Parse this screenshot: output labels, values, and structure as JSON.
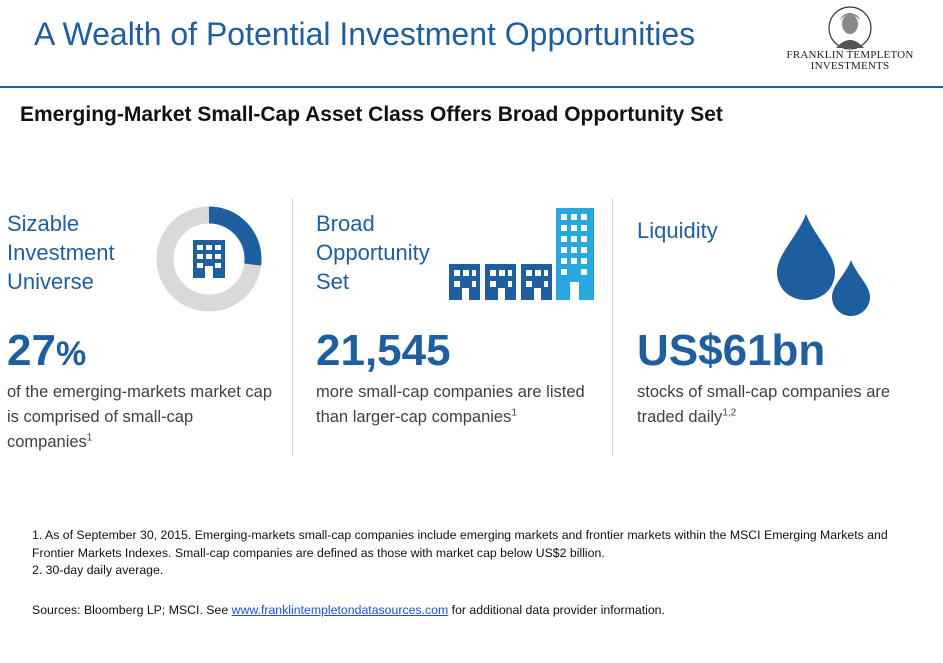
{
  "header": {
    "title": "A Wealth of Potential Investment Opportunities",
    "logo_line1": "FRANKLIN TEMPLETON",
    "logo_line2": "INVESTMENTS"
  },
  "subtitle": "Emerging-Market Small-Cap Asset Class Offers Broad Opportunity Set",
  "columns": [
    {
      "heading_lines": [
        "Sizable",
        "Investment",
        "Universe"
      ],
      "stat": "27",
      "stat_suffix": "%",
      "description": "of the emerging-markets market cap is comprised of small-cap companies",
      "footnote_ref": "1",
      "icon": "donut-building-icon",
      "donut_fraction": 0.27
    },
    {
      "heading_lines": [
        "Broad",
        "Opportunity",
        "Set"
      ],
      "stat": "21,545",
      "stat_suffix": "",
      "description": "more small-cap companies are listed than larger-cap companies",
      "footnote_ref": "1",
      "icon": "buildings-icon"
    },
    {
      "heading_lines": [
        "Liquidity"
      ],
      "stat": "US$61bn",
      "stat_suffix": "",
      "description": "stocks of small-cap companies are traded daily",
      "footnote_ref": "1,2",
      "icon": "water-drops-icon"
    }
  ],
  "footnotes": [
    "1. As of September 30, 2015. Emerging-markets small-cap companies include emerging markets and frontier markets within the MSCI Emerging Markets and Frontier Markets Indexes. Small-cap companies are defined as those with market cap below US$2 billion.",
    "2. 30-day daily average."
  ],
  "sources": {
    "prefix": "Sources: Bloomberg LP; MSCI. See ",
    "link_text": "www.franklintempletondatasources.com",
    "suffix": " for additional data provider information."
  },
  "colors": {
    "primary_blue": "#1f5f9f",
    "light_blue": "#29a8e0",
    "donut_gray": "#d9d9d9",
    "drop_blue": "#1e5e9e"
  }
}
